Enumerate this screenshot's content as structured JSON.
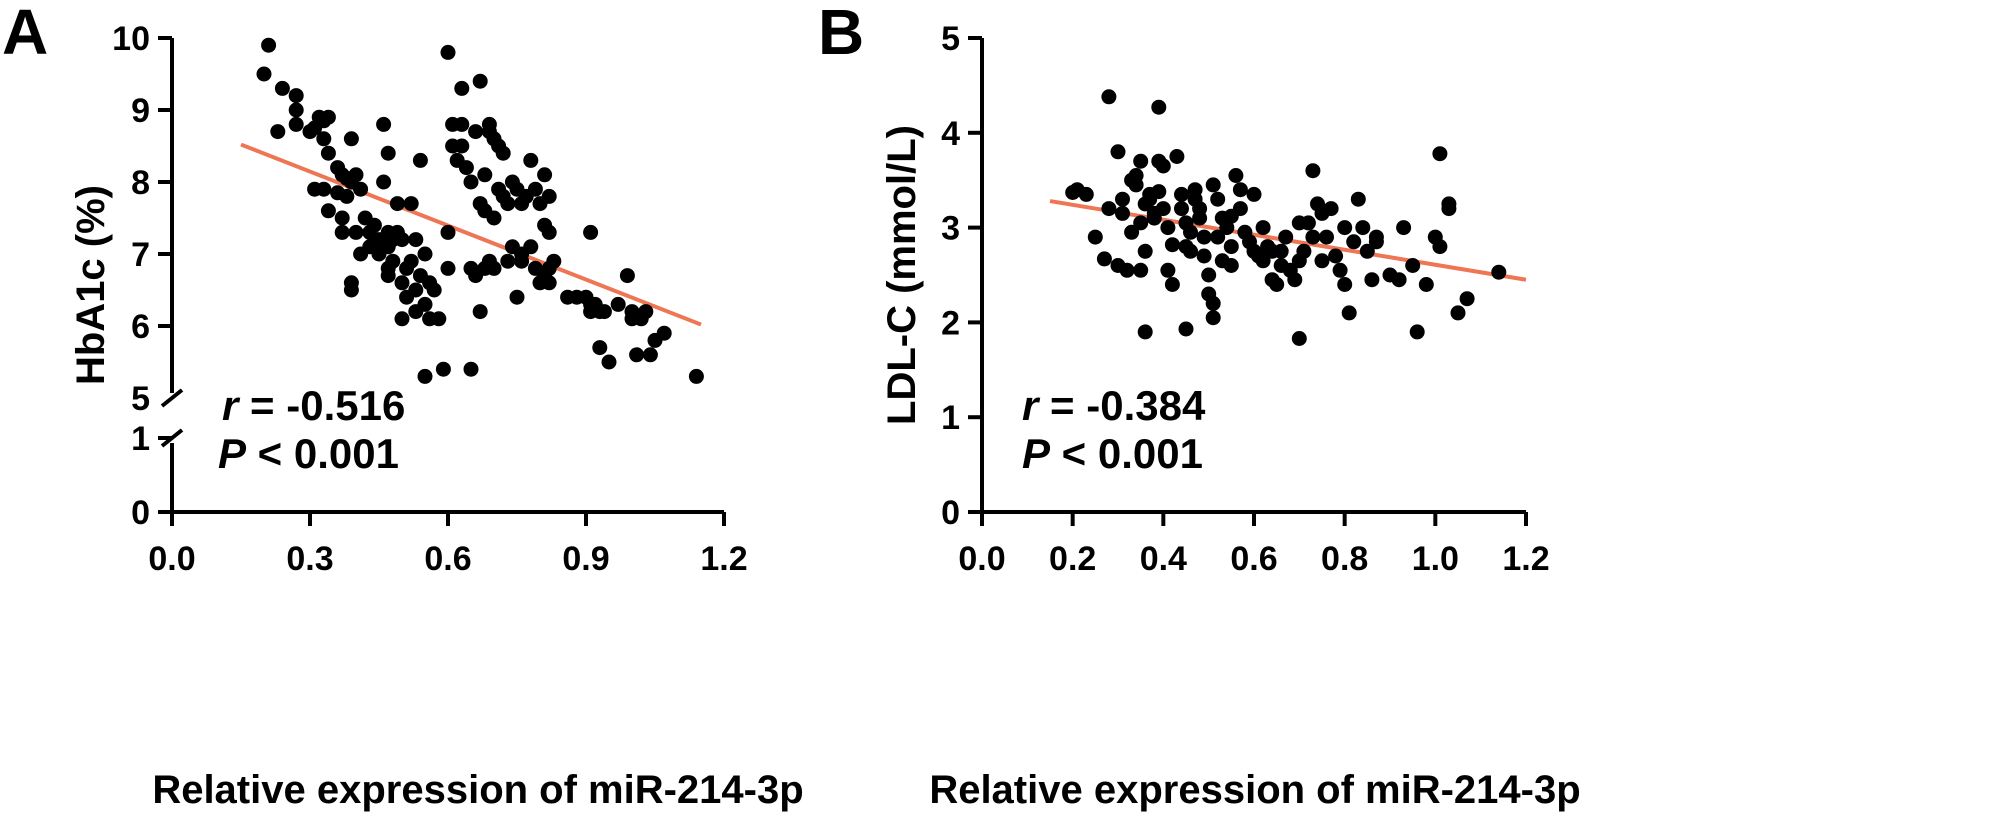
{
  "chart_data": [
    {
      "type": "scatter",
      "panel_label": "A",
      "xlabel": "Relative expression of miR-214-3p",
      "ylabel": "HbA1c (%)",
      "xlim": [
        0,
        1.2
      ],
      "ylim_upper": [
        5,
        10
      ],
      "ylim_lower": [
        0,
        1
      ],
      "axis_break": true,
      "x_ticks": [
        "0.0",
        "0.3",
        "0.6",
        "0.9",
        "1.2"
      ],
      "y_ticks_upper": [
        "5",
        "6",
        "7",
        "8",
        "9",
        "10"
      ],
      "y_ticks_lower": [
        "0",
        "1"
      ],
      "stat_r_symbol": "r",
      "stat_r_value": " = -0.516",
      "stat_p_symbol": "P",
      "stat_p_value": " < 0.001",
      "fit_line": {
        "x": [
          0.15,
          1.15
        ],
        "y": [
          8.52,
          6.02
        ],
        "color": "#ee7655"
      },
      "points": [
        [
          0.21,
          9.9
        ],
        [
          0.2,
          9.5
        ],
        [
          0.24,
          9.3
        ],
        [
          0.27,
          9.2
        ],
        [
          0.27,
          9.0
        ],
        [
          0.27,
          8.8
        ],
        [
          0.23,
          8.7
        ],
        [
          0.3,
          8.7
        ],
        [
          0.31,
          8.75
        ],
        [
          0.32,
          8.9
        ],
        [
          0.33,
          8.85
        ],
        [
          0.34,
          8.9
        ],
        [
          0.33,
          8.6
        ],
        [
          0.34,
          8.4
        ],
        [
          0.36,
          8.2
        ],
        [
          0.37,
          8.1
        ],
        [
          0.38,
          8.05
        ],
        [
          0.39,
          8.0
        ],
        [
          0.4,
          8.1
        ],
        [
          0.41,
          7.9
        ],
        [
          0.39,
          8.6
        ],
        [
          0.36,
          7.85
        ],
        [
          0.33,
          7.9
        ],
        [
          0.31,
          7.9
        ],
        [
          0.34,
          7.6
        ],
        [
          0.38,
          7.8
        ],
        [
          0.37,
          7.5
        ],
        [
          0.42,
          7.5
        ],
        [
          0.44,
          7.4
        ],
        [
          0.46,
          8.0
        ],
        [
          0.46,
          8.8
        ],
        [
          0.47,
          8.4
        ],
        [
          0.49,
          7.7
        ],
        [
          0.52,
          7.7
        ],
        [
          0.47,
          7.3
        ],
        [
          0.45,
          7.2
        ],
        [
          0.43,
          7.3
        ],
        [
          0.4,
          7.3
        ],
        [
          0.37,
          7.3
        ],
        [
          0.41,
          7.0
        ],
        [
          0.39,
          6.6
        ],
        [
          0.39,
          6.5
        ],
        [
          0.43,
          7.1
        ],
        [
          0.45,
          7.0
        ],
        [
          0.47,
          7.1
        ],
        [
          0.48,
          7.2
        ],
        [
          0.49,
          7.3
        ],
        [
          0.5,
          7.2
        ],
        [
          0.53,
          7.2
        ],
        [
          0.55,
          7.0
        ],
        [
          0.48,
          6.9
        ],
        [
          0.47,
          6.8
        ],
        [
          0.47,
          6.7
        ],
        [
          0.5,
          6.6
        ],
        [
          0.51,
          6.8
        ],
        [
          0.52,
          6.9
        ],
        [
          0.51,
          6.4
        ],
        [
          0.53,
          6.5
        ],
        [
          0.54,
          6.7
        ],
        [
          0.56,
          6.6
        ],
        [
          0.57,
          6.5
        ],
        [
          0.55,
          6.3
        ],
        [
          0.53,
          6.2
        ],
        [
          0.5,
          6.1
        ],
        [
          0.56,
          6.1
        ],
        [
          0.58,
          6.1
        ],
        [
          0.55,
          5.3
        ],
        [
          0.59,
          5.4
        ],
        [
          0.6,
          7.3
        ],
        [
          0.6,
          6.8
        ],
        [
          0.54,
          8.3
        ],
        [
          0.6,
          9.8
        ],
        [
          0.63,
          9.3
        ],
        [
          0.61,
          8.8
        ],
        [
          0.63,
          8.8
        ],
        [
          0.61,
          8.5
        ],
        [
          0.63,
          8.5
        ],
        [
          0.62,
          8.3
        ],
        [
          0.64,
          8.2
        ],
        [
          0.65,
          8.0
        ],
        [
          0.66,
          8.7
        ],
        [
          0.67,
          9.4
        ],
        [
          0.69,
          8.8
        ],
        [
          0.69,
          8.7
        ],
        [
          0.7,
          8.6
        ],
        [
          0.71,
          8.5
        ],
        [
          0.72,
          8.4
        ],
        [
          0.68,
          8.1
        ],
        [
          0.71,
          7.9
        ],
        [
          0.67,
          7.7
        ],
        [
          0.68,
          7.6
        ],
        [
          0.7,
          7.5
        ],
        [
          0.72,
          7.8
        ],
        [
          0.73,
          7.7
        ],
        [
          0.74,
          8.0
        ],
        [
          0.75,
          7.9
        ],
        [
          0.76,
          7.7
        ],
        [
          0.77,
          7.8
        ],
        [
          0.78,
          8.3
        ],
        [
          0.79,
          7.9
        ],
        [
          0.8,
          7.7
        ],
        [
          0.81,
          8.1
        ],
        [
          0.82,
          7.8
        ],
        [
          0.81,
          7.4
        ],
        [
          0.82,
          7.3
        ],
        [
          0.78,
          7.1
        ],
        [
          0.76,
          7.0
        ],
        [
          0.74,
          7.1
        ],
        [
          0.73,
          6.9
        ],
        [
          0.76,
          6.9
        ],
        [
          0.69,
          6.9
        ],
        [
          0.7,
          6.8
        ],
        [
          0.68,
          6.8
        ],
        [
          0.66,
          6.7
        ],
        [
          0.65,
          6.8
        ],
        [
          0.67,
          6.2
        ],
        [
          0.65,
          5.4
        ],
        [
          0.75,
          6.4
        ],
        [
          0.79,
          6.8
        ],
        [
          0.8,
          6.6
        ],
        [
          0.81,
          6.7
        ],
        [
          0.82,
          6.8
        ],
        [
          0.83,
          6.9
        ],
        [
          0.82,
          6.6
        ],
        [
          0.86,
          6.4
        ],
        [
          0.88,
          6.4
        ],
        [
          0.9,
          6.4
        ],
        [
          0.91,
          6.3
        ],
        [
          0.92,
          6.3
        ],
        [
          0.93,
          6.2
        ],
        [
          0.91,
          7.3
        ],
        [
          0.91,
          6.2
        ],
        [
          0.94,
          6.2
        ],
        [
          0.97,
          6.3
        ],
        [
          0.99,
          6.7
        ],
        [
          1.0,
          6.2
        ],
        [
          1.02,
          6.1
        ],
        [
          1.0,
          6.1
        ],
        [
          1.03,
          6.2
        ],
        [
          1.05,
          5.8
        ],
        [
          1.07,
          5.9
        ],
        [
          0.93,
          5.7
        ],
        [
          0.95,
          5.5
        ],
        [
          1.01,
          5.6
        ],
        [
          1.04,
          5.6
        ],
        [
          1.14,
          5.3
        ]
      ]
    },
    {
      "type": "scatter",
      "panel_label": "B",
      "xlabel": "Relative expression of miR-214-3p",
      "ylabel": "LDL-C (mmol/L)",
      "xlim": [
        0,
        1.2
      ],
      "ylim": [
        0,
        5
      ],
      "x_ticks": [
        "0.0",
        "0.2",
        "0.4",
        "0.6",
        "0.8",
        "1.0",
        "1.2"
      ],
      "y_ticks": [
        "0",
        "1",
        "2",
        "3",
        "4",
        "5"
      ],
      "stat_r_symbol": "r",
      "stat_r_value": " = -0.384",
      "stat_p_symbol": "P",
      "stat_p_value": " < 0.001",
      "fit_line": {
        "x": [
          0.15,
          1.2
        ],
        "y": [
          3.28,
          2.45
        ],
        "color": "#ee7655"
      },
      "points": [
        [
          0.2,
          3.37
        ],
        [
          0.21,
          3.4
        ],
        [
          0.23,
          3.35
        ],
        [
          0.25,
          2.9
        ],
        [
          0.27,
          2.67
        ],
        [
          0.28,
          4.38
        ],
        [
          0.28,
          3.2
        ],
        [
          0.3,
          3.8
        ],
        [
          0.3,
          2.6
        ],
        [
          0.31,
          3.15
        ],
        [
          0.31,
          3.3
        ],
        [
          0.32,
          2.55
        ],
        [
          0.33,
          3.5
        ],
        [
          0.34,
          3.55
        ],
        [
          0.34,
          3.45
        ],
        [
          0.35,
          3.7
        ],
        [
          0.35,
          3.05
        ],
        [
          0.36,
          3.25
        ],
        [
          0.36,
          2.75
        ],
        [
          0.35,
          2.55
        ],
        [
          0.37,
          3.3
        ],
        [
          0.37,
          3.35
        ],
        [
          0.38,
          3.1
        ],
        [
          0.38,
          3.15
        ],
        [
          0.39,
          4.27
        ],
        [
          0.39,
          3.7
        ],
        [
          0.4,
          3.65
        ],
        [
          0.39,
          3.38
        ],
        [
          0.4,
          3.2
        ],
        [
          0.41,
          3.0
        ],
        [
          0.41,
          2.55
        ],
        [
          0.42,
          2.4
        ],
        [
          0.43,
          3.75
        ],
        [
          0.44,
          3.35
        ],
        [
          0.44,
          3.2
        ],
        [
          0.45,
          3.05
        ],
        [
          0.45,
          2.8
        ],
        [
          0.46,
          2.95
        ],
        [
          0.46,
          2.75
        ],
        [
          0.47,
          3.4
        ],
        [
          0.47,
          3.3
        ],
        [
          0.48,
          3.2
        ],
        [
          0.48,
          3.1
        ],
        [
          0.49,
          2.9
        ],
        [
          0.49,
          2.7
        ],
        [
          0.5,
          2.5
        ],
        [
          0.5,
          2.3
        ],
        [
          0.51,
          2.2
        ],
        [
          0.51,
          3.45
        ],
        [
          0.52,
          3.3
        ],
        [
          0.52,
          2.9
        ],
        [
          0.53,
          2.65
        ],
        [
          0.53,
          3.1
        ],
        [
          0.54,
          3.0
        ],
        [
          0.55,
          2.8
        ],
        [
          0.55,
          2.6
        ],
        [
          0.56,
          3.55
        ],
        [
          0.57,
          3.2
        ],
        [
          0.57,
          3.4
        ],
        [
          0.58,
          2.95
        ],
        [
          0.59,
          2.85
        ],
        [
          0.6,
          3.35
        ],
        [
          0.6,
          2.75
        ],
        [
          0.61,
          2.7
        ],
        [
          0.62,
          2.65
        ],
        [
          0.63,
          2.8
        ],
        [
          0.64,
          2.75
        ],
        [
          0.64,
          2.45
        ],
        [
          0.65,
          2.4
        ],
        [
          0.66,
          2.6
        ],
        [
          0.67,
          2.9
        ],
        [
          0.68,
          2.55
        ],
        [
          0.69,
          2.45
        ],
        [
          0.7,
          2.65
        ],
        [
          0.7,
          1.83
        ],
        [
          0.71,
          2.75
        ],
        [
          0.72,
          3.05
        ],
        [
          0.73,
          3.6
        ],
        [
          0.73,
          2.9
        ],
        [
          0.74,
          3.25
        ],
        [
          0.75,
          2.65
        ],
        [
          0.76,
          2.9
        ],
        [
          0.77,
          3.2
        ],
        [
          0.78,
          2.7
        ],
        [
          0.79,
          2.55
        ],
        [
          0.8,
          3.0
        ],
        [
          0.8,
          2.4
        ],
        [
          0.81,
          2.1
        ],
        [
          0.82,
          2.85
        ],
        [
          0.83,
          3.3
        ],
        [
          0.84,
          3.0
        ],
        [
          0.85,
          2.75
        ],
        [
          0.86,
          2.45
        ],
        [
          0.87,
          2.9
        ],
        [
          0.9,
          2.5
        ],
        [
          0.92,
          2.45
        ],
        [
          0.93,
          3.0
        ],
        [
          0.95,
          2.6
        ],
        [
          0.96,
          1.9
        ],
        [
          0.98,
          2.4
        ],
        [
          1.0,
          2.9
        ],
        [
          1.01,
          3.78
        ],
        [
          1.01,
          2.8
        ],
        [
          1.03,
          3.25
        ],
        [
          1.03,
          3.2
        ],
        [
          1.05,
          2.1
        ],
        [
          1.07,
          2.25
        ],
        [
          1.14,
          2.53
        ],
        [
          0.36,
          1.9
        ],
        [
          0.45,
          1.93
        ],
        [
          0.51,
          2.05
        ],
        [
          0.62,
          3.0
        ],
        [
          0.7,
          3.05
        ],
        [
          0.75,
          3.15
        ],
        [
          0.87,
          2.85
        ],
        [
          0.55,
          3.12
        ],
        [
          0.42,
          2.82
        ],
        [
          0.33,
          2.95
        ],
        [
          0.66,
          2.75
        ]
      ]
    }
  ]
}
